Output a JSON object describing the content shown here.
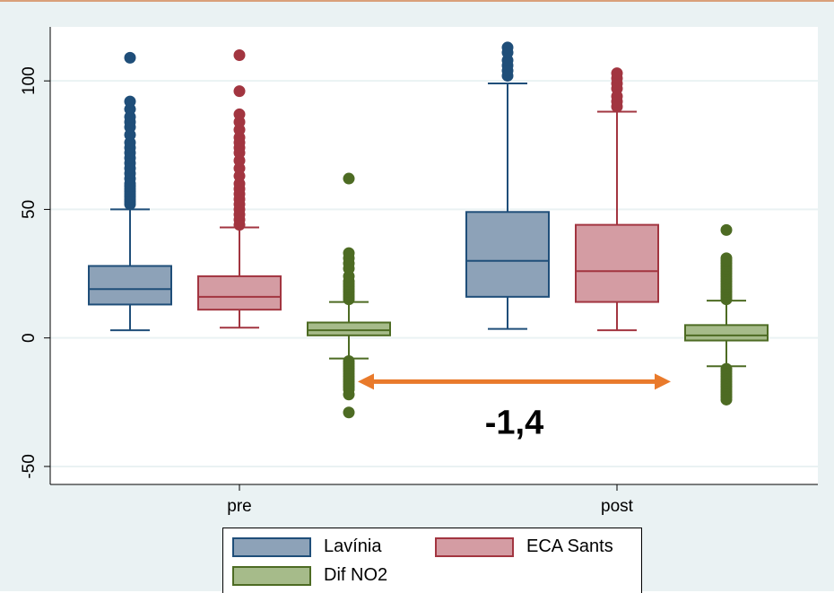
{
  "chart_data": {
    "type": "box",
    "categories": [
      "pre",
      "post"
    ],
    "y_ticks": [
      -50,
      0,
      50,
      100
    ],
    "y_tick_labels": [
      "-50",
      "0",
      "50",
      "100"
    ],
    "ylim": [
      -57,
      121
    ],
    "grid": true,
    "legend_position": "bottom",
    "series": [
      {
        "name": "Lavínia",
        "fill": "#8da2b8",
        "stroke": "#1f4e79",
        "boxes": [
          {
            "category": "pre",
            "whisker_low": 3,
            "q1": 13,
            "median": 19,
            "q3": 28,
            "whisker_high": 50,
            "outliers": [
              52,
              53,
              54,
              55,
              56,
              57,
              58,
              59,
              60,
              62,
              64,
              66,
              68,
              70,
              72,
              74,
              76,
              79,
              82,
              84,
              86,
              89,
              92,
              109
            ]
          },
          {
            "category": "post",
            "whisker_low": 3.5,
            "q1": 16,
            "median": 30,
            "q3": 49,
            "whisker_high": 99,
            "outliers": [
              102,
              104,
              106,
              108,
              111,
              113
            ]
          }
        ]
      },
      {
        "name": "ECA Sants",
        "fill": "#d49ca3",
        "stroke": "#a23540",
        "boxes": [
          {
            "category": "pre",
            "whisker_low": 4,
            "q1": 11,
            "median": 16,
            "q3": 24,
            "whisker_high": 43,
            "outliers": [
              44,
              46,
              48,
              50,
              52,
              54,
              56,
              58,
              60,
              63,
              66,
              69,
              72,
              74,
              76,
              78,
              81,
              84,
              87,
              96,
              110
            ]
          },
          {
            "category": "post",
            "whisker_low": 3,
            "q1": 14,
            "median": 26,
            "q3": 44,
            "whisker_high": 88,
            "outliers": [
              90,
              92,
              94,
              97,
              99,
              101,
              103
            ]
          }
        ]
      },
      {
        "name": "Dif NO2",
        "fill": "#a6bb8a",
        "stroke": "#4d6b23",
        "boxes": [
          {
            "category": "pre",
            "whisker_low": -8,
            "q1": 1,
            "median": 3,
            "q3": 6,
            "whisker_high": 14,
            "outliers": [
              15,
              16,
              17,
              18,
              19,
              20,
              21,
              22,
              24,
              27,
              29,
              31,
              33,
              62,
              -9,
              -10,
              -11,
              -12,
              -13,
              -14,
              -15,
              -16,
              -17,
              -18,
              -19,
              -20,
              -22,
              -29
            ]
          },
          {
            "category": "post",
            "whisker_low": -11,
            "q1": -1,
            "median": 1,
            "q3": 5,
            "whisker_high": 14.5,
            "outliers": [
              15,
              16,
              17,
              18,
              19,
              20,
              21,
              22,
              23,
              24,
              25,
              26,
              27,
              28,
              29,
              30,
              31,
              42,
              -12,
              -13,
              -14,
              -15,
              -16,
              -17,
              -18,
              -19,
              -20,
              -21,
              -22,
              -23,
              -24
            ]
          }
        ]
      }
    ],
    "annotation": {
      "text": "-1,4",
      "arrow_color": "#e97a2b",
      "from": {
        "category": "pre",
        "y": -17
      },
      "to": {
        "category": "post",
        "y": -17
      }
    }
  }
}
